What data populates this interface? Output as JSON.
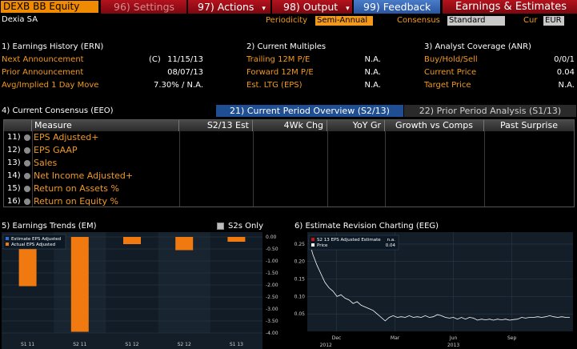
{
  "toolbar": {
    "ticker": "DEXB BB Equity",
    "settings": "96) Settings",
    "actions": "97) Actions",
    "output": "98) Output",
    "feedback": "99) Feedback",
    "function_title": "Earnings & Estimates",
    "dropdown_arrow": "▾"
  },
  "header": {
    "company": "Dexia SA",
    "periodicity_label": "Periodicity",
    "periodicity_value": "Semi-Annual",
    "consensus_label": "Consensus",
    "consensus_value": "Standard",
    "cur_label": "Cur",
    "cur_value": "EUR"
  },
  "earnings_history": {
    "title": "1) Earnings History (ERN)",
    "rows": [
      {
        "label": "Next Announcement",
        "flag": "(C)",
        "value": "11/15/13"
      },
      {
        "label": "Prior Announcement",
        "flag": "",
        "value": "08/07/13"
      },
      {
        "label": "Avg/Implied 1 Day Move",
        "flag": "",
        "value": "7.30% / N.A."
      }
    ]
  },
  "current_multiples": {
    "title": "2) Current Multiples",
    "rows": [
      {
        "label": "Trailing 12M P/E",
        "value": "N.A."
      },
      {
        "label": "Forward 12M P/E",
        "value": "N.A."
      },
      {
        "label": "Est. LTG (EPS)",
        "value": "N.A."
      }
    ]
  },
  "analyst_coverage": {
    "title": "3) Analyst Coverage (ANR)",
    "rows": [
      {
        "label": "Buy/Hold/Sell",
        "value": "0/0/1"
      },
      {
        "label": "Current Price",
        "value": "0.04"
      },
      {
        "label": "Target Price",
        "value": "N.A."
      }
    ]
  },
  "consensus": {
    "title": "4) Current Consensus (EEO)",
    "tab_active": "21) Current Period Overview (S2/13)",
    "tab_inactive": "22) Prior Period Analysis (S1/13)",
    "columns": [
      "Measure",
      "S2/13 Est",
      "4Wk Chg",
      "YoY Gr",
      "Growth vs Comps",
      "Past Surprise"
    ],
    "rows": [
      {
        "num": "11)",
        "measure": "EPS Adjusted+"
      },
      {
        "num": "12)",
        "measure": "EPS GAAP"
      },
      {
        "num": "13)",
        "measure": "Sales"
      },
      {
        "num": "14)",
        "measure": "Net Income Adjusted+"
      },
      {
        "num": "15)",
        "measure": "Return on Assets %"
      },
      {
        "num": "16)",
        "measure": "Return on Equity %"
      }
    ]
  },
  "earnings_trends": {
    "title": "5) Earnings Trends (EM)",
    "s2s_label": "S2s Only",
    "legend": [
      {
        "name": "Estimate EPS Adjusted",
        "color": "#2f6fd6"
      },
      {
        "name": "Actual EPS Adjusted",
        "color": "#f07a10"
      }
    ]
  },
  "revision_chart": {
    "title": "6) Estimate Revision Charting (EEG)",
    "legend": [
      {
        "name": "S2 13 EPS Adjusted Estimate",
        "value": "n.a.",
        "color": "#d01010"
      },
      {
        "name": "Price",
        "value": "0.04",
        "color": "#ffffff"
      }
    ]
  },
  "chart_data": [
    {
      "type": "bar",
      "title": "5) Earnings Trends (EM)",
      "categories": [
        "S1 11",
        "S2 11",
        "S1 12",
        "S2 12",
        "S1 13"
      ],
      "series": [
        {
          "name": "Estimate EPS Adjusted",
          "values": [
            null,
            null,
            null,
            null,
            null
          ]
        },
        {
          "name": "Actual EPS Adjusted",
          "values": [
            -2.05,
            -3.95,
            -0.3,
            -0.55,
            -0.2
          ]
        }
      ],
      "ylim": [
        -4.0,
        0.0
      ],
      "yticks": [
        "0.00",
        "-0.50",
        "-1.00",
        "-1.50",
        "-2.00",
        "-2.50",
        "-3.00",
        "-3.50",
        "-4.00"
      ],
      "grid": true,
      "legend": "top-left"
    },
    {
      "type": "line",
      "title": "6) Estimate Revision Charting (EEG)",
      "xlabels_top": [
        "Dec",
        "Mar",
        "Jun",
        "Sep"
      ],
      "xlabels_bottom": [
        "2012",
        "2013"
      ],
      "yticks": [
        "0.25",
        "0.20",
        "0.15",
        "0.10",
        "0.05"
      ],
      "ylim": [
        0.0,
        0.275
      ],
      "grid": true,
      "legend": "top-left",
      "series": [
        {
          "name": "Price",
          "values": [
            0.26,
            0.22,
            0.19,
            0.165,
            0.14,
            0.125,
            0.115,
            0.1,
            0.105,
            0.095,
            0.09,
            0.08,
            0.085,
            0.075,
            0.07,
            0.065,
            0.06,
            0.05,
            0.04,
            0.03,
            0.04,
            0.045,
            0.04,
            0.042,
            0.04,
            0.045,
            0.04,
            0.042,
            0.04,
            0.045,
            0.04,
            0.042,
            0.048,
            0.045,
            0.04,
            0.038,
            0.04,
            0.035,
            0.04,
            0.035,
            0.04,
            0.038,
            0.032,
            0.035,
            0.033,
            0.035,
            0.032,
            0.035,
            0.033,
            0.035,
            0.032,
            0.034,
            0.035,
            0.04,
            0.038,
            0.04,
            0.04,
            0.042,
            0.04,
            0.042,
            0.045,
            0.042,
            0.04,
            0.042,
            0.04,
            0.04
          ]
        }
      ]
    }
  ]
}
